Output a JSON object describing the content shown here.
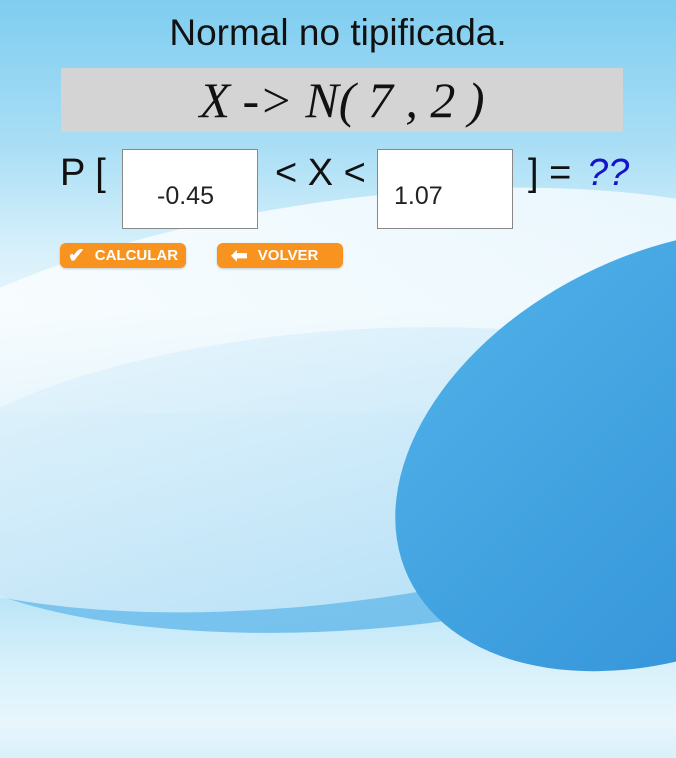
{
  "title": "Normal no tipificada.",
  "formula": "X -> N( 7 , 2 )",
  "prob": {
    "prefix": "P [",
    "middle": "< X <",
    "suffix": "] =",
    "result": "??",
    "result_color": "#1414c8",
    "lower": "-0.45",
    "upper": "1.07"
  },
  "buttons": {
    "calcular": "CALCULAR",
    "volver": "VOLVER",
    "accent": "#f7931e"
  }
}
